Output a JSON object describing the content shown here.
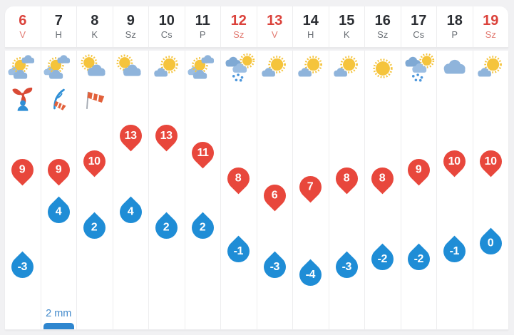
{
  "widget": {
    "name": "14-day-forecast",
    "precip_label_day7": "2 mm"
  },
  "days": [
    {
      "date": "6",
      "abbr": "V",
      "weekend": true,
      "icon": "sun-behind-clouds",
      "wind": "storm-turbine",
      "high": 9,
      "low": -3,
      "precip": ""
    },
    {
      "date": "7",
      "abbr": "H",
      "weekend": false,
      "icon": "sun-behind-clouds",
      "wind": "strong-wind-tree",
      "high": 9,
      "low": 4,
      "precip": "2 mm"
    },
    {
      "date": "8",
      "abbr": "K",
      "weekend": false,
      "icon": "partly-cloudy",
      "wind": "windsock",
      "high": 10,
      "low": 2,
      "precip": ""
    },
    {
      "date": "9",
      "abbr": "Sz",
      "weekend": false,
      "icon": "partly-cloudy",
      "wind": "",
      "high": 13,
      "low": 4,
      "precip": ""
    },
    {
      "date": "10",
      "abbr": "Cs",
      "weekend": false,
      "icon": "mostly-sunny",
      "wind": "",
      "high": 13,
      "low": 2,
      "precip": ""
    },
    {
      "date": "11",
      "abbr": "P",
      "weekend": false,
      "icon": "sun-behind-clouds",
      "wind": "",
      "high": 11,
      "low": 2,
      "precip": ""
    },
    {
      "date": "12",
      "abbr": "Sz",
      "weekend": true,
      "icon": "rain-sun",
      "wind": "",
      "high": 8,
      "low": -1,
      "precip": ""
    },
    {
      "date": "13",
      "abbr": "V",
      "weekend": true,
      "icon": "mostly-sunny",
      "wind": "",
      "high": 6,
      "low": -3,
      "precip": ""
    },
    {
      "date": "14",
      "abbr": "H",
      "weekend": false,
      "icon": "mostly-sunny",
      "wind": "",
      "high": 7,
      "low": -4,
      "precip": ""
    },
    {
      "date": "15",
      "abbr": "K",
      "weekend": false,
      "icon": "mostly-sunny",
      "wind": "",
      "high": 8,
      "low": -3,
      "precip": ""
    },
    {
      "date": "16",
      "abbr": "Sz",
      "weekend": false,
      "icon": "sunny",
      "wind": "",
      "high": 8,
      "low": -2,
      "precip": ""
    },
    {
      "date": "17",
      "abbr": "Cs",
      "weekend": false,
      "icon": "rain-sun",
      "wind": "",
      "high": 9,
      "low": -2,
      "precip": ""
    },
    {
      "date": "18",
      "abbr": "P",
      "weekend": false,
      "icon": "cloudy",
      "wind": "",
      "high": 10,
      "low": -1,
      "precip": ""
    },
    {
      "date": "19",
      "abbr": "Sz",
      "weekend": true,
      "icon": "mostly-sunny",
      "wind": "",
      "high": 10,
      "low": 0,
      "precip": ""
    }
  ],
  "colors": {
    "high_marker": "#E8473C",
    "low_marker": "#1F8DD6",
    "weekend_red": "#DB423B",
    "weekend_red_light": "#E27A71",
    "day_number": "#2B2E33",
    "day_abbr": "#6A6F75",
    "precip_bar": "#2E86CF",
    "precip_text": "#4189CB",
    "sun": "#F5C43C",
    "cloud": "#8FB4DB",
    "cloud_dark": "#7FA9D4",
    "cloud_light": "#9CBEE2",
    "rain_drop": "#4D97DC",
    "wind_red": "#D94A35",
    "wind_blue": "#2F8FD6",
    "windsock_orange": "#E2603A"
  }
}
